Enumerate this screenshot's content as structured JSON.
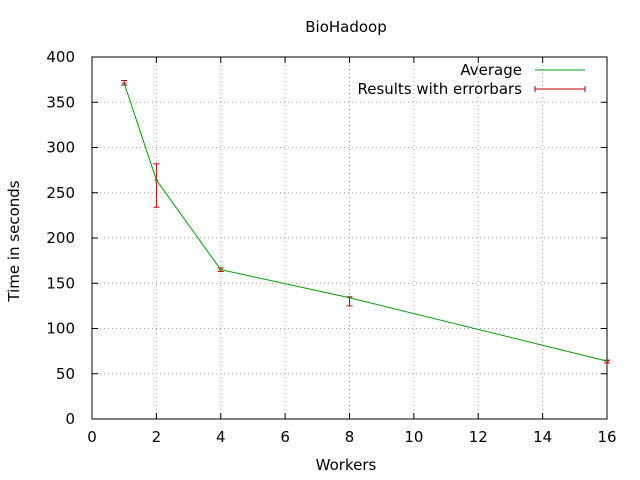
{
  "chart_data": {
    "type": "line",
    "title": "BioHadoop",
    "xlabel": "Workers",
    "ylabel": "Time in seconds",
    "xlim": [
      0,
      16
    ],
    "ylim": [
      0,
      400
    ],
    "xticks": [
      0,
      2,
      4,
      6,
      8,
      10,
      12,
      14,
      16
    ],
    "yticks": [
      0,
      50,
      100,
      150,
      200,
      250,
      300,
      350,
      400
    ],
    "grid": true,
    "legend_position": "top-right",
    "series": [
      {
        "name": "Average",
        "kind": "line",
        "color": "#00a000",
        "x": [
          1,
          2,
          4,
          8,
          16
        ],
        "y": [
          371,
          264,
          165,
          134,
          64
        ]
      },
      {
        "name": "Results with errorbars",
        "kind": "errorbars",
        "color": "#c00000",
        "x": [
          1,
          2,
          4,
          8,
          16
        ],
        "y": [
          371,
          264,
          165,
          134,
          64
        ],
        "ylow": [
          369,
          234,
          163,
          125,
          62
        ],
        "yhigh": [
          374,
          282,
          167,
          135,
          65
        ]
      }
    ]
  }
}
